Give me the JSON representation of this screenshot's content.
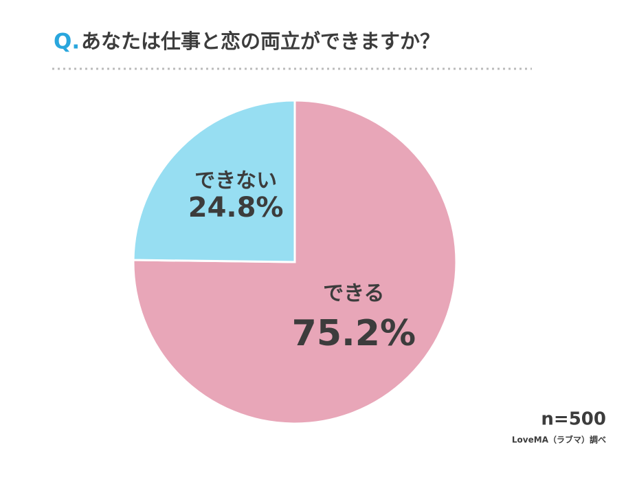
{
  "chart_data": {
    "type": "pie",
    "question_prefix": "Q.",
    "title": "あなたは仕事と恋の両立ができますか？",
    "categories": [
      "できる",
      "できない"
    ],
    "values": [
      75.2,
      24.8
    ],
    "value_labels": [
      "75.2%",
      "24.8%"
    ],
    "colors": [
      "#e8a6b8",
      "#97def2"
    ],
    "sample_size": "n=500",
    "source": "LoveMA（ラブマ）調べ"
  }
}
